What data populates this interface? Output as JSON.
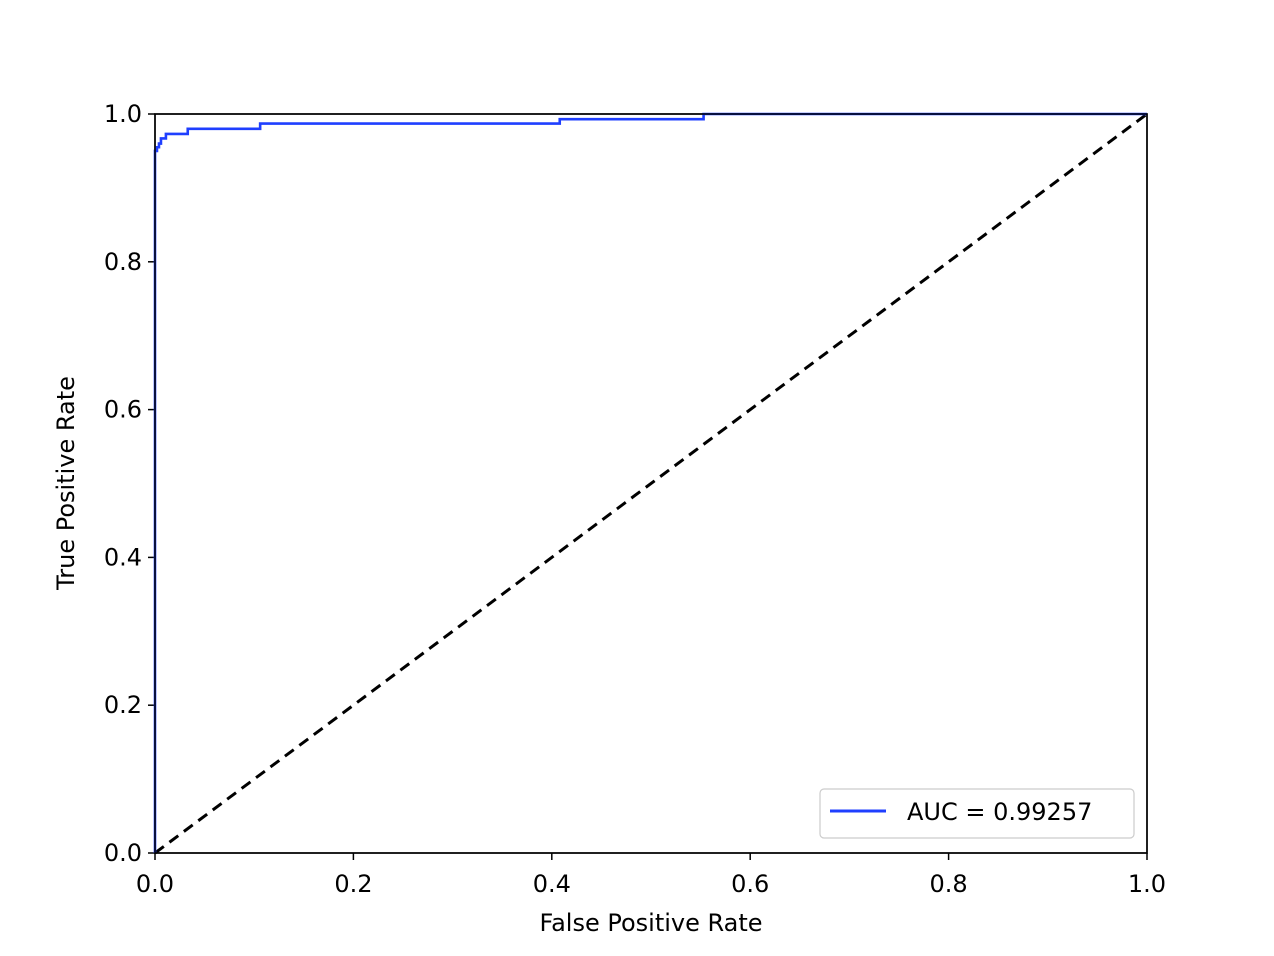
{
  "chart_data": {
    "type": "line",
    "title": "",
    "xlabel": "False Positive Rate",
    "ylabel": "True Positive Rate",
    "xlim": [
      0.0,
      1.0
    ],
    "ylim": [
      0.0,
      1.0
    ],
    "xticks": [
      "0.0",
      "0.2",
      "0.4",
      "0.6",
      "0.8",
      "1.0"
    ],
    "yticks": [
      "0.0",
      "0.2",
      "0.4",
      "0.6",
      "0.8",
      "1.0"
    ],
    "grid": false,
    "legend_position": "lower-right",
    "series": [
      {
        "name": "AUC = 0.99257",
        "color": "#1f3fff",
        "style": "solid",
        "x": [
          0.0,
          0.0,
          0.002,
          0.002,
          0.004,
          0.004,
          0.006,
          0.006,
          0.011,
          0.011,
          0.033,
          0.033,
          0.106,
          0.106,
          0.408,
          0.408,
          0.553,
          0.553,
          1.0
        ],
        "y": [
          0.0,
          0.95,
          0.95,
          0.955,
          0.955,
          0.96,
          0.96,
          0.967,
          0.967,
          0.973,
          0.973,
          0.98,
          0.98,
          0.987,
          0.987,
          0.993,
          0.993,
          1.0,
          1.0
        ]
      },
      {
        "name": "",
        "color": "#000000",
        "style": "dashed",
        "x": [
          0.0,
          1.0
        ],
        "y": [
          0.0,
          1.0
        ]
      }
    ]
  }
}
